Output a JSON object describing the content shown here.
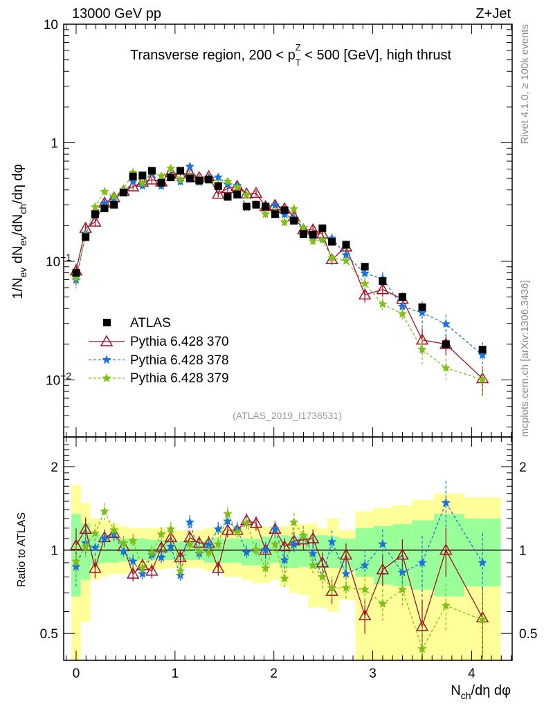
{
  "chart_data": {
    "type": "line",
    "header_left": "13000 GeV pp",
    "header_right": "Z+Jet",
    "title": "Transverse region, 200 < p",
    "title_sub": "T",
    "title_sup": "Z",
    "title_rest": " < 500 [GeV], high thrust",
    "ylabel": "1/N_ev dN_ev/dN_ch/dη dφ",
    "ylabel_parts": [
      "1/N",
      "ev",
      " dN",
      "ev",
      "/dN",
      "ch",
      "/dη dφ"
    ],
    "xlabel_parts": [
      "N",
      "ch",
      "/dη dφ"
    ],
    "ratio_ylabel": "Ratio to ATLAS",
    "side_text_top": "Rivet 4.1.0, ≥ 100k events",
    "side_text_bottom": "mcplots.cern.ch [arXiv:1306.3436]",
    "analysis_id": "(ATLAS_2019_I1736531)",
    "xlim": [
      -0.126,
      4.41
    ],
    "ylim": [
      0.0033,
      10
    ],
    "ratio_ylim": [
      0.4,
      2.56
    ],
    "yscale": "log",
    "legend_position": "lower-left",
    "x_ticks": [
      "0",
      "1",
      "2",
      "3",
      "4"
    ],
    "y_ticks": [
      {
        "v": 10,
        "label": "10"
      },
      {
        "v": 1,
        "label": "1"
      },
      {
        "v": 0.1,
        "label": "10",
        "exp": "−1"
      },
      {
        "v": 0.01,
        "label": "10",
        "exp": "−2"
      }
    ],
    "ratio_ticks": [
      {
        "v": 2,
        "label": "2"
      },
      {
        "v": 1,
        "label": "1"
      },
      {
        "v": 0.5,
        "label": "0.5"
      }
    ],
    "x": [
      0,
      0.096,
      0.192,
      0.287,
      0.383,
      0.479,
      0.575,
      0.671,
      0.766,
      0.862,
      0.958,
      1.054,
      1.15,
      1.245,
      1.341,
      1.437,
      1.533,
      1.629,
      1.724,
      1.82,
      1.916,
      2.012,
      2.108,
      2.203,
      2.299,
      2.395,
      2.491,
      2.587,
      2.73,
      2.92,
      3.1,
      3.3,
      3.5,
      3.74,
      4.11
    ],
    "data": {
      "name": "ATLAS",
      "color": "#000000",
      "values": [
        0.08,
        0.16,
        0.25,
        0.28,
        0.3,
        0.38,
        0.52,
        0.53,
        0.58,
        0.46,
        0.51,
        0.58,
        0.5,
        0.48,
        0.49,
        0.43,
        0.35,
        0.365,
        0.29,
        0.3,
        0.29,
        0.25,
        0.27,
        0.22,
        0.17,
        0.168,
        0.19,
        0.146,
        0.138,
        0.09,
        0.068,
        0.05,
        0.041,
        0.02,
        0.018
      ],
      "band_outer_color": "#ffff99",
      "band_inner_color": "#99ff99",
      "band_outer_hi": [
        1.72,
        1.48,
        1.3,
        1.28,
        1.25,
        1.22,
        1.2,
        1.2,
        1.2,
        1.2,
        1.18,
        1.18,
        1.18,
        1.18,
        1.2,
        1.2,
        1.2,
        1.2,
        1.22,
        1.22,
        1.22,
        1.2,
        1.22,
        1.24,
        1.24,
        1.25,
        1.2,
        1.3,
        1.18,
        1.38,
        1.42,
        1.45,
        1.52,
        1.6,
        1.55
      ],
      "band_outer_lo": [
        0.3,
        0.55,
        0.78,
        0.8,
        0.82,
        0.82,
        0.84,
        0.85,
        0.85,
        0.85,
        0.86,
        0.86,
        0.86,
        0.86,
        0.84,
        0.84,
        0.8,
        0.8,
        0.78,
        0.76,
        0.76,
        0.78,
        0.74,
        0.7,
        0.69,
        0.62,
        0.62,
        0.6,
        0.66,
        0.38,
        0.38,
        0.38,
        0.38,
        0.38,
        0.38
      ],
      "band_inner_hi": [
        1.35,
        1.25,
        1.15,
        1.13,
        1.12,
        1.1,
        1.1,
        1.1,
        1.09,
        1.09,
        1.08,
        1.08,
        1.08,
        1.08,
        1.09,
        1.1,
        1.1,
        1.1,
        1.1,
        1.1,
        1.12,
        1.12,
        1.13,
        1.12,
        1.14,
        1.13,
        1.13,
        1.12,
        1.1,
        1.2,
        1.22,
        1.24,
        1.28,
        1.35,
        1.3
      ],
      "band_inner_lo": [
        0.68,
        0.78,
        0.88,
        0.9,
        0.9,
        0.91,
        0.91,
        0.92,
        0.92,
        0.92,
        0.92,
        0.92,
        0.92,
        0.92,
        0.9,
        0.9,
        0.9,
        0.9,
        0.88,
        0.88,
        0.88,
        0.9,
        0.86,
        0.86,
        0.87,
        0.86,
        0.86,
        0.86,
        0.85,
        0.8,
        0.75,
        0.74,
        0.72,
        0.68,
        0.74
      ]
    },
    "series": [
      {
        "name": "Pythia 6.428 370",
        "color": "#a50f25",
        "marker": "triangle-open",
        "dash": "",
        "ratio": [
          1.04,
          1.19,
          0.86,
          1.11,
          1.15,
          1.03,
          0.82,
          0.88,
          0.84,
          1.02,
          1.11,
          0.94,
          1.11,
          1.06,
          1.06,
          0.86,
          1.18,
          1.18,
          1.28,
          1.25,
          1.0,
          1.19,
          1.03,
          1.08,
          1.09,
          1.1,
          0.9,
          0.71,
          0.96,
          0.58,
          0.85,
          0.96,
          0.53,
          1.0,
          0.57
        ]
      },
      {
        "name": "Pythia 6.428 378",
        "color": "#1a73d9",
        "marker": "star",
        "dash": "4,3",
        "ratio": [
          0.87,
          1.06,
          1.02,
          1.1,
          1.14,
          0.99,
          0.91,
          0.82,
          0.96,
          0.94,
          1.03,
          0.81,
          1.26,
          0.97,
          1.04,
          1.19,
          1.27,
          1.19,
          0.98,
          1.0,
          1.0,
          1.19,
          0.92,
          1.05,
          1.13,
          0.97,
          0.8,
          1.07,
          0.82,
          0.88,
          1.05,
          0.83,
          0.9,
          1.48,
          0.9
        ]
      },
      {
        "name": "Pythia 6.428 379",
        "color": "#80bf1a",
        "marker": "star",
        "dash": "4,3",
        "ratio": [
          0.91,
          1.03,
          1.15,
          1.38,
          1.18,
          1.06,
          1.08,
          0.86,
          0.98,
          1.14,
          1.19,
          0.84,
          1.05,
          0.99,
          0.98,
          1.05,
          1.35,
          1.16,
          1.25,
          1.0,
          0.86,
          1.05,
          0.79,
          1.26,
          1.13,
          0.88,
          0.8,
          0.73,
          0.73,
          0.72,
          0.64,
          0.72,
          0.44,
          0.63,
          0.56
        ]
      }
    ],
    "mc_rel_err": [
      0.15,
      0.1,
      0.08,
      0.07,
      0.06,
      0.06,
      0.06,
      0.06,
      0.06,
      0.06,
      0.06,
      0.06,
      0.06,
      0.06,
      0.06,
      0.06,
      0.06,
      0.06,
      0.06,
      0.06,
      0.07,
      0.07,
      0.07,
      0.08,
      0.08,
      0.08,
      0.09,
      0.1,
      0.1,
      0.14,
      0.13,
      0.14,
      0.25,
      0.2,
      0.28
    ]
  }
}
